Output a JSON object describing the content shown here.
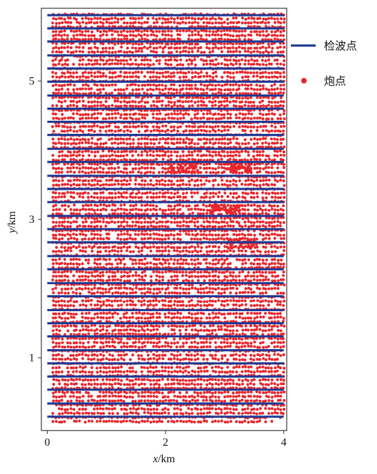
{
  "chart_data": {
    "type": "scatter",
    "xlabel": {
      "var": "x",
      "unit": "/km"
    },
    "ylabel": {
      "var": "y",
      "unit": "/km"
    },
    "xlim": [
      -0.1,
      4.05
    ],
    "ylim": [
      -0.05,
      6.05
    ],
    "xticks": [
      0,
      2,
      4
    ],
    "yticks": [
      1,
      3,
      5
    ],
    "grid": false,
    "legend_position": "outside-right-top",
    "colors": {
      "receiver": "#1f3a93",
      "shot": "#e8262b"
    },
    "series": [
      {
        "name": "检波点",
        "marker": "line",
        "x_range": [
          0,
          4
        ],
        "y_values": [
          0.15,
          0.34,
          0.54,
          0.73,
          0.92,
          1.11,
          1.31,
          1.5,
          1.69,
          1.89,
          2.08,
          2.28,
          2.47,
          2.67,
          2.86,
          3.05,
          3.25,
          3.44,
          3.63,
          3.83,
          4.02,
          4.22,
          4.41,
          4.6,
          4.79,
          4.99,
          5.18,
          5.37,
          5.57,
          5.76,
          5.95
        ]
      },
      {
        "name": "炮点",
        "marker": "dot",
        "x_range": [
          0.1,
          4.0
        ],
        "x_step": 0.05,
        "y_range": [
          0.08,
          5.97
        ],
        "y_step": 0.06,
        "note_dense_clusters_xy": [
          [
            2.3,
            3.75
          ],
          [
            3.2,
            3.75
          ],
          [
            3.0,
            3.15
          ],
          [
            3.3,
            2.65
          ]
        ]
      }
    ]
  }
}
